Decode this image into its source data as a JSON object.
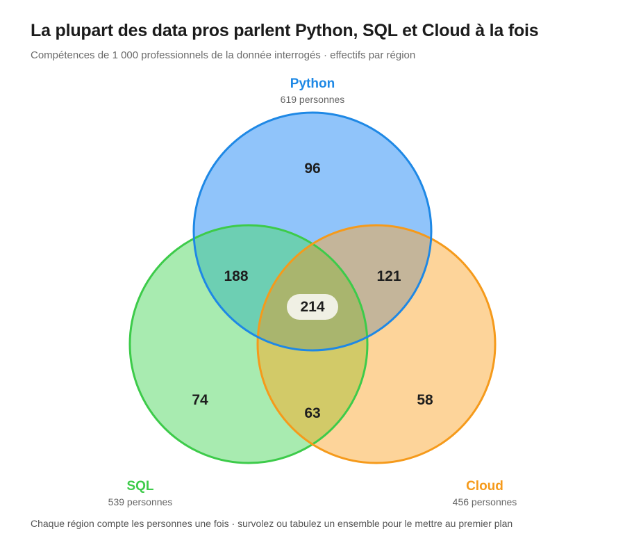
{
  "header": {
    "title": "La plupart des data pros parlent Python, SQL et Cloud à la fois",
    "subtitle": "Compétences de 1 000 professionnels de la donnée interrogés · effectifs par région"
  },
  "sets": {
    "python": {
      "name": "Python",
      "count_label": "619 personnes",
      "total": 619,
      "color": "#1E88E5",
      "fill": "#90C4FA"
    },
    "sql": {
      "name": "SQL",
      "count_label": "539 personnes",
      "total": 539,
      "color": "#3DCB4A",
      "fill": "#A8EBB0"
    },
    "cloud": {
      "name": "Cloud",
      "count_label": "456 personnes",
      "total": 456,
      "color": "#F59A1B",
      "fill": "#FDD49A"
    }
  },
  "regions": {
    "python_only": 96,
    "sql_only": 74,
    "cloud_only": 58,
    "python_sql": 188,
    "python_cloud": 121,
    "sql_cloud": 63,
    "all_three": 214
  },
  "footer": {
    "note": "Chaque région compte les personnes une fois · survolez ou tabulez un ensemble pour le mettre au premier plan"
  }
}
